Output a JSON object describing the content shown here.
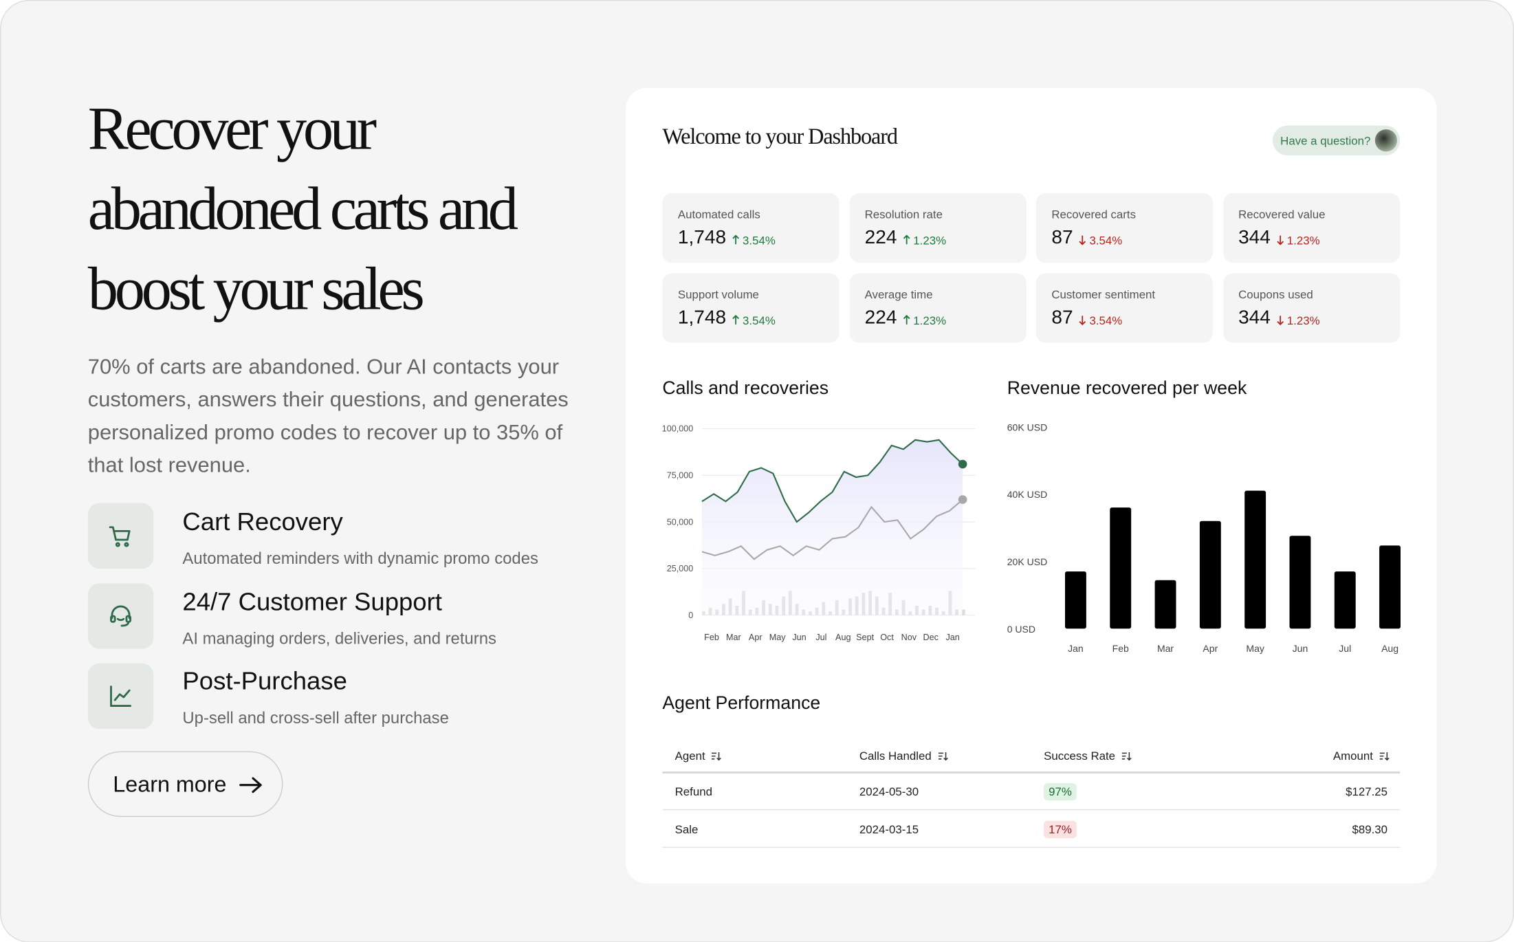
{
  "hero": {
    "title_lines": [
      "Recover your",
      "abandoned carts and",
      "boost your sales"
    ],
    "description": "70% of carts are abandoned. Our AI contacts your customers, answers their questions, and generates personalized promo codes to recover up to 35% of that lost revenue.",
    "features": [
      {
        "title": "Cart Recovery",
        "description": "Automated reminders with dynamic promo codes"
      },
      {
        "title": "24/7 Customer Support",
        "description": "AI managing orders, deliveries, and returns"
      },
      {
        "title": "Post-Purchase",
        "description": "Up-sell and cross-sell after purchase"
      }
    ],
    "button": "Learn more"
  },
  "dashboard": {
    "title": "Welcome to your Dashboard",
    "help_button": "Have a question?",
    "stats": [
      {
        "label": "Automated calls",
        "value": "1,748",
        "change": "3.54%",
        "trend": "up"
      },
      {
        "label": "Resolution rate",
        "value": "224",
        "change": "1.23%",
        "trend": "up"
      },
      {
        "label": "Recovered carts",
        "value": "87",
        "change": "3.54%",
        "trend": "down"
      },
      {
        "label": "Recovered value",
        "value": "344",
        "change": "1.23%",
        "trend": "down"
      },
      {
        "label": "Support volume",
        "value": "1,748",
        "change": "3.54%",
        "trend": "up"
      },
      {
        "label": "Average time",
        "value": "224",
        "change": "1.23%",
        "trend": "up"
      },
      {
        "label": "Customer sentiment",
        "value": "87",
        "change": "3.54%",
        "trend": "down"
      },
      {
        "label": "Coupons used",
        "value": "344",
        "change": "1.23%",
        "trend": "down"
      }
    ],
    "calls_chart": {
      "type": "line",
      "title": "Calls and recoveries",
      "ylim": [
        0,
        100000
      ],
      "yticks": [
        {
          "value": 0,
          "label": "0"
        },
        {
          "value": 25000,
          "label": "25,000"
        },
        {
          "value": 50000,
          "label": "50,000"
        },
        {
          "value": 75000,
          "label": "75,000"
        },
        {
          "value": 100000,
          "label": "100,000"
        }
      ],
      "x_labels": [
        "Feb",
        "Mar",
        "Apr",
        "May",
        "Jun",
        "Jul",
        "Aug",
        "Sept",
        "Oct",
        "Nov",
        "Dec",
        "Jan"
      ],
      "series": [
        {
          "color": "#2f6b4a",
          "values": [
            61000,
            65000,
            61000,
            66000,
            77000,
            79000,
            76000,
            61000,
            50000,
            55000,
            61000,
            66000,
            77000,
            74000,
            75000,
            82000,
            91000,
            89000,
            94000,
            93000,
            94000,
            87000,
            81000
          ]
        },
        {
          "color": "#a8a8a8",
          "values": [
            34000,
            32000,
            34000,
            37000,
            30000,
            35000,
            37000,
            32000,
            37000,
            35000,
            41000,
            42000,
            47000,
            58000,
            50000,
            51000,
            41000,
            46000,
            53000,
            56000,
            62000
          ]
        }
      ],
      "volume": {
        "color": "#dcdcdc",
        "values": [
          2000,
          4000,
          3000,
          6000,
          9000,
          5000,
          13000,
          3000,
          4000,
          8000,
          6000,
          5000,
          10000,
          13000,
          6000,
          3000,
          2000,
          4000,
          7000,
          2000,
          8000,
          3000,
          9000,
          10000,
          12000,
          13000,
          10000,
          4000,
          12000,
          3000,
          8000,
          2000,
          5000,
          3000,
          5000,
          4000,
          2000,
          13000,
          3000,
          3000
        ]
      }
    },
    "revenue_chart": {
      "type": "bar",
      "title": "Revenue recovered per week",
      "categories": [
        "Jan",
        "Feb",
        "Mar",
        "Apr",
        "May",
        "Jun",
        "Jul",
        "Aug"
      ],
      "values": [
        17000,
        36000,
        14400,
        32000,
        41000,
        27600,
        17000,
        24700
      ],
      "color": "#000000",
      "ylim": [
        0,
        60000
      ],
      "yticks": [
        {
          "value": 0,
          "label": "0 USD"
        },
        {
          "value": 20000,
          "label": "20K USD"
        },
        {
          "value": 40000,
          "label": "40K USD"
        },
        {
          "value": 60000,
          "label": "60K USD"
        }
      ]
    },
    "table": {
      "title": "Agent Performance",
      "columns": [
        "Agent",
        "Calls Handled",
        "Success Rate",
        "Amount"
      ],
      "rows": [
        [
          "Refund",
          "2024-05-30",
          "97%",
          "$127.25"
        ],
        [
          "Sale",
          "2024-03-15",
          "17%",
          "$89.30"
        ]
      ],
      "row_tones": [
        "good",
        "bad"
      ]
    }
  }
}
